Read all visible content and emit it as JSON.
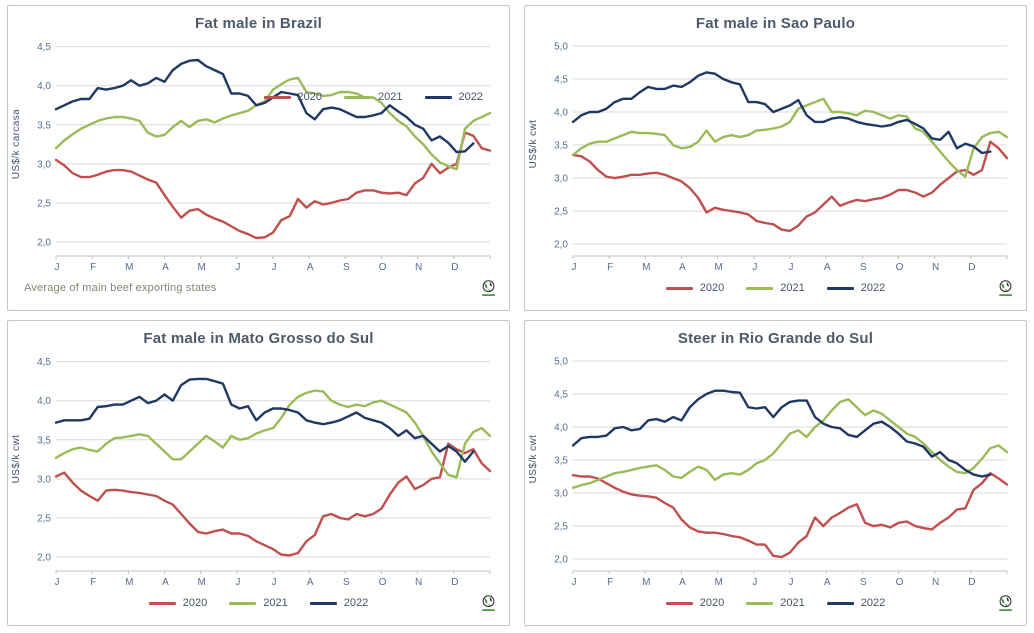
{
  "colors": {
    "series_2020": "#c0504d",
    "series_2021": "#9bbb59",
    "series_2022": "#1f3864",
    "grid": "#d9d9d9",
    "axis": "#bfbfbf",
    "tick_text": "#546f93",
    "title_text": "#4d5a6b",
    "legend_text": "#44546a",
    "footnote_text": "#8c8274"
  },
  "chart_data": [
    {
      "type": "line",
      "title": "Fat male in Brazil",
      "ylabel": "US$/k carcasa",
      "ylim": [
        2.0,
        4.5
      ],
      "ystep": 0.5,
      "ytick_labels": [
        "2,0",
        "2,5",
        "3,0",
        "3,5",
        "4,0",
        "4,5"
      ],
      "xtick_labels": [
        "J",
        "F",
        "M",
        "A",
        "M",
        "J",
        "J",
        "A",
        "S",
        "O",
        "N",
        "D"
      ],
      "x_slots": 53,
      "grid": true,
      "legend_position": "top-right",
      "footnote": "Average  of main beef exporting states",
      "series": [
        {
          "name": "2020",
          "color_key": "series_2020",
          "values": [
            3.05,
            2.98,
            2.88,
            2.83,
            2.83,
            2.86,
            2.9,
            2.92,
            2.92,
            2.9,
            2.85,
            2.8,
            2.76,
            2.6,
            2.45,
            2.31,
            2.4,
            2.42,
            2.35,
            2.3,
            2.26,
            2.2,
            2.14,
            2.1,
            2.05,
            2.06,
            2.12,
            2.28,
            2.33,
            2.55,
            2.44,
            2.52,
            2.48,
            2.5,
            2.53,
            2.55,
            2.63,
            2.66,
            2.66,
            2.63,
            2.62,
            2.63,
            2.6,
            2.75,
            2.82,
            3.0,
            2.88,
            2.95,
            3.0,
            3.4,
            3.36,
            3.2,
            3.17
          ]
        },
        {
          "name": "2021",
          "color_key": "series_2021",
          "values": [
            3.2,
            3.3,
            3.38,
            3.45,
            3.5,
            3.55,
            3.58,
            3.6,
            3.6,
            3.58,
            3.55,
            3.4,
            3.35,
            3.37,
            3.47,
            3.55,
            3.47,
            3.55,
            3.57,
            3.53,
            3.58,
            3.62,
            3.65,
            3.68,
            3.75,
            3.8,
            3.95,
            4.02,
            4.08,
            4.1,
            3.92,
            3.9,
            3.87,
            3.88,
            3.92,
            3.92,
            3.9,
            3.85,
            3.85,
            3.78,
            3.65,
            3.55,
            3.48,
            3.35,
            3.25,
            3.12,
            3.02,
            2.97,
            2.93,
            3.45,
            3.55,
            3.6,
            3.65
          ]
        },
        {
          "name": "2022",
          "color_key": "series_2022",
          "values": [
            3.7,
            3.75,
            3.8,
            3.83,
            3.83,
            3.97,
            3.95,
            3.97,
            4.0,
            4.07,
            4.0,
            4.03,
            4.1,
            4.05,
            4.2,
            4.28,
            4.32,
            4.33,
            4.25,
            4.2,
            4.15,
            3.9,
            3.9,
            3.87,
            3.75,
            3.78,
            3.85,
            3.92,
            3.9,
            3.88,
            3.65,
            3.57,
            3.7,
            3.72,
            3.7,
            3.65,
            3.6,
            3.6,
            3.62,
            3.65,
            3.75,
            3.67,
            3.6,
            3.5,
            3.45,
            3.3,
            3.35,
            3.27,
            3.15,
            3.16,
            3.26
          ]
        }
      ]
    },
    {
      "type": "line",
      "title": "Fat male in Sao Paulo",
      "ylabel": "US$/k cwt",
      "ylim": [
        2.0,
        5.0
      ],
      "ystep": 0.5,
      "ytick_labels": [
        "2,0",
        "2,5",
        "3,0",
        "3,5",
        "4,0",
        "4,5",
        "5,0"
      ],
      "xtick_labels": [
        "J",
        "F",
        "M",
        "A",
        "M",
        "J",
        "J",
        "A",
        "S",
        "O",
        "N",
        "D"
      ],
      "x_slots": 53,
      "grid": true,
      "legend_position": "bottom",
      "series": [
        {
          "name": "2020",
          "color_key": "series_2020",
          "values": [
            3.35,
            3.33,
            3.25,
            3.12,
            3.02,
            3.0,
            3.02,
            3.05,
            3.05,
            3.07,
            3.08,
            3.05,
            3.0,
            2.95,
            2.85,
            2.7,
            2.48,
            2.55,
            2.52,
            2.5,
            2.48,
            2.45,
            2.35,
            2.32,
            2.3,
            2.22,
            2.2,
            2.28,
            2.42,
            2.48,
            2.6,
            2.72,
            2.58,
            2.63,
            2.67,
            2.65,
            2.68,
            2.7,
            2.75,
            2.82,
            2.82,
            2.78,
            2.72,
            2.78,
            2.9,
            3.0,
            3.1,
            3.12,
            3.05,
            3.12,
            3.55,
            3.45,
            3.3
          ]
        },
        {
          "name": "2021",
          "color_key": "series_2021",
          "values": [
            3.35,
            3.45,
            3.52,
            3.55,
            3.55,
            3.6,
            3.65,
            3.7,
            3.68,
            3.68,
            3.67,
            3.65,
            3.5,
            3.45,
            3.47,
            3.55,
            3.72,
            3.55,
            3.62,
            3.65,
            3.62,
            3.65,
            3.72,
            3.73,
            3.75,
            3.78,
            3.85,
            4.05,
            4.1,
            4.15,
            4.2,
            4.0,
            4.0,
            3.98,
            3.95,
            4.02,
            4.0,
            3.95,
            3.9,
            3.95,
            3.93,
            3.75,
            3.7,
            3.55,
            3.4,
            3.25,
            3.12,
            3.02,
            3.45,
            3.62,
            3.68,
            3.7,
            3.62
          ]
        },
        {
          "name": "2022",
          "color_key": "series_2022",
          "values": [
            3.85,
            3.95,
            4.0,
            4.0,
            4.05,
            4.15,
            4.2,
            4.2,
            4.3,
            4.38,
            4.35,
            4.35,
            4.4,
            4.38,
            4.45,
            4.55,
            4.6,
            4.58,
            4.5,
            4.45,
            4.42,
            4.15,
            4.15,
            4.12,
            4.0,
            4.05,
            4.1,
            4.18,
            3.95,
            3.85,
            3.85,
            3.9,
            3.92,
            3.9,
            3.85,
            3.82,
            3.8,
            3.78,
            3.8,
            3.85,
            3.88,
            3.82,
            3.75,
            3.6,
            3.58,
            3.7,
            3.45,
            3.52,
            3.48,
            3.38,
            3.4
          ]
        }
      ]
    },
    {
      "type": "line",
      "title": "Fat male in Mato Grosso do Sul",
      "ylabel": "US$/k  cwt",
      "ylim": [
        2.0,
        4.5
      ],
      "ystep": 0.5,
      "ytick_labels": [
        "2,0",
        "2,5",
        "3,0",
        "3,5",
        "4,0",
        "4,5"
      ],
      "xtick_labels": [
        "J",
        "F",
        "M",
        "A",
        "M",
        "J",
        "J",
        "A",
        "S",
        "O",
        "N",
        "D"
      ],
      "x_slots": 53,
      "grid": true,
      "legend_position": "bottom",
      "series": [
        {
          "name": "2020",
          "color_key": "series_2020",
          "values": [
            3.03,
            3.08,
            2.95,
            2.85,
            2.78,
            2.72,
            2.85,
            2.86,
            2.85,
            2.83,
            2.82,
            2.8,
            2.78,
            2.72,
            2.67,
            2.55,
            2.43,
            2.32,
            2.3,
            2.33,
            2.35,
            2.3,
            2.3,
            2.27,
            2.2,
            2.15,
            2.1,
            2.03,
            2.02,
            2.05,
            2.2,
            2.28,
            2.52,
            2.55,
            2.5,
            2.48,
            2.55,
            2.52,
            2.55,
            2.62,
            2.8,
            2.95,
            3.03,
            2.87,
            2.92,
            3.0,
            3.02,
            3.45,
            3.38,
            3.33,
            3.38,
            3.2,
            3.1
          ]
        },
        {
          "name": "2021",
          "color_key": "series_2021",
          "values": [
            3.27,
            3.33,
            3.38,
            3.4,
            3.37,
            3.35,
            3.45,
            3.52,
            3.53,
            3.55,
            3.57,
            3.55,
            3.45,
            3.35,
            3.25,
            3.25,
            3.35,
            3.45,
            3.55,
            3.48,
            3.4,
            3.55,
            3.5,
            3.52,
            3.58,
            3.62,
            3.65,
            3.78,
            3.95,
            4.05,
            4.1,
            4.13,
            4.12,
            4.0,
            3.95,
            3.92,
            3.95,
            3.93,
            3.98,
            4.0,
            3.95,
            3.9,
            3.85,
            3.72,
            3.55,
            3.35,
            3.2,
            3.05,
            3.02,
            3.45,
            3.6,
            3.65,
            3.55
          ]
        },
        {
          "name": "2022",
          "color_key": "series_2022",
          "values": [
            3.72,
            3.75,
            3.75,
            3.75,
            3.77,
            3.92,
            3.93,
            3.95,
            3.95,
            4.0,
            4.05,
            3.97,
            4.0,
            4.08,
            4.0,
            4.2,
            4.27,
            4.28,
            4.28,
            4.25,
            4.22,
            3.95,
            3.9,
            3.93,
            3.75,
            3.85,
            3.9,
            3.9,
            3.88,
            3.85,
            3.75,
            3.72,
            3.7,
            3.72,
            3.75,
            3.8,
            3.85,
            3.78,
            3.75,
            3.72,
            3.65,
            3.55,
            3.62,
            3.52,
            3.55,
            3.45,
            3.35,
            3.42,
            3.35,
            3.22,
            3.35
          ]
        }
      ]
    },
    {
      "type": "line",
      "title": "Steer  in Rio Grande do Sul",
      "ylabel": "US$/k cwt",
      "ylim": [
        2.0,
        5.0
      ],
      "ystep": 0.5,
      "ytick_labels": [
        "2,0",
        "2,5",
        "3,0",
        "3,5",
        "4,0",
        "4,5",
        "5,0"
      ],
      "xtick_labels": [
        "J",
        "F",
        "M",
        "A",
        "M",
        "J",
        "J",
        "A",
        "S",
        "O",
        "N",
        "D"
      ],
      "x_slots": 53,
      "grid": true,
      "legend_position": "bottom",
      "series": [
        {
          "name": "2020",
          "color_key": "series_2020",
          "values": [
            3.27,
            3.25,
            3.25,
            3.22,
            3.15,
            3.08,
            3.02,
            2.98,
            2.96,
            2.95,
            2.93,
            2.85,
            2.78,
            2.6,
            2.48,
            2.42,
            2.4,
            2.4,
            2.38,
            2.35,
            2.33,
            2.28,
            2.22,
            2.22,
            2.05,
            2.03,
            2.1,
            2.25,
            2.35,
            2.63,
            2.5,
            2.63,
            2.7,
            2.78,
            2.83,
            2.55,
            2.5,
            2.52,
            2.48,
            2.55,
            2.57,
            2.5,
            2.47,
            2.45,
            2.55,
            2.63,
            2.75,
            2.77,
            3.05,
            3.15,
            3.3,
            3.22,
            3.13
          ]
        },
        {
          "name": "2021",
          "color_key": "series_2021",
          "values": [
            3.08,
            3.12,
            3.15,
            3.2,
            3.25,
            3.3,
            3.32,
            3.35,
            3.38,
            3.4,
            3.42,
            3.35,
            3.25,
            3.23,
            3.32,
            3.4,
            3.35,
            3.2,
            3.28,
            3.3,
            3.28,
            3.35,
            3.45,
            3.5,
            3.6,
            3.75,
            3.9,
            3.95,
            3.85,
            4.0,
            4.1,
            4.25,
            4.38,
            4.42,
            4.3,
            4.18,
            4.25,
            4.2,
            4.1,
            4.0,
            3.9,
            3.85,
            3.75,
            3.62,
            3.5,
            3.4,
            3.32,
            3.3,
            3.38,
            3.52,
            3.68,
            3.72,
            3.62
          ]
        },
        {
          "name": "2022",
          "color_key": "series_2022",
          "values": [
            3.72,
            3.83,
            3.85,
            3.85,
            3.87,
            3.98,
            4.0,
            3.95,
            3.97,
            4.1,
            4.12,
            4.08,
            4.15,
            4.1,
            4.3,
            4.42,
            4.5,
            4.55,
            4.55,
            4.53,
            4.52,
            4.3,
            4.28,
            4.3,
            4.15,
            4.3,
            4.38,
            4.4,
            4.4,
            4.15,
            4.05,
            4.0,
            3.98,
            3.88,
            3.85,
            3.95,
            4.05,
            4.08,
            4.0,
            3.9,
            3.78,
            3.75,
            3.7,
            3.55,
            3.62,
            3.5,
            3.45,
            3.35,
            3.28,
            3.25,
            3.28
          ]
        }
      ]
    }
  ]
}
